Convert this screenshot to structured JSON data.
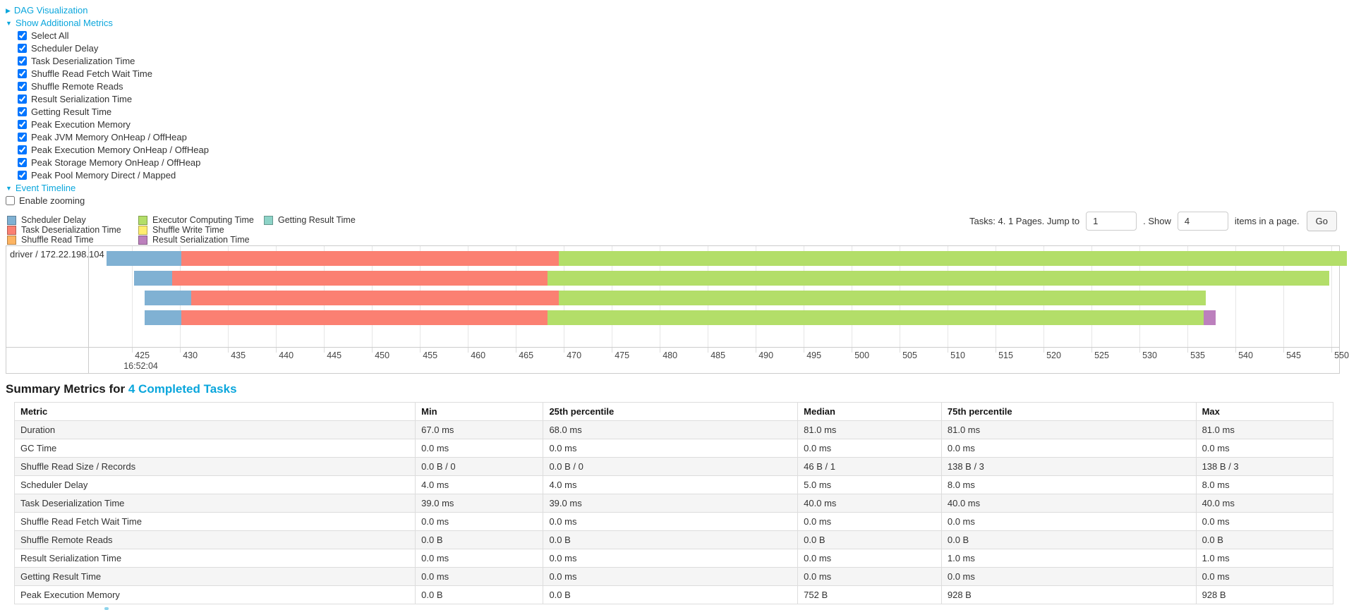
{
  "controls": {
    "dag": {
      "label": "DAG Visualization",
      "expanded": false
    },
    "metrics": {
      "label": "Show Additional Metrics",
      "expanded": true,
      "items": [
        {
          "label": "Select All",
          "checked": true
        },
        {
          "label": "Scheduler Delay",
          "checked": true
        },
        {
          "label": "Task Deserialization Time",
          "checked": true
        },
        {
          "label": "Shuffle Read Fetch Wait Time",
          "checked": true
        },
        {
          "label": "Shuffle Remote Reads",
          "checked": true
        },
        {
          "label": "Result Serialization Time",
          "checked": true
        },
        {
          "label": "Getting Result Time",
          "checked": true
        },
        {
          "label": "Peak Execution Memory",
          "checked": true
        },
        {
          "label": "Peak JVM Memory OnHeap / OffHeap",
          "checked": true
        },
        {
          "label": "Peak Execution Memory OnHeap / OffHeap",
          "checked": true
        },
        {
          "label": "Peak Storage Memory OnHeap / OffHeap",
          "checked": true
        },
        {
          "label": "Peak Pool Memory Direct / Mapped",
          "checked": true
        }
      ]
    },
    "timeline": {
      "label": "Event Timeline",
      "expanded": true
    },
    "enable_zooming": {
      "label": "Enable zooming",
      "checked": false
    }
  },
  "legend": {
    "items": [
      {
        "key": "scheduler-delay",
        "label": "Scheduler Delay",
        "color": "#80B1D3"
      },
      {
        "key": "task-deserialization-time",
        "label": "Task Deserialization Time",
        "color": "#FB8072"
      },
      {
        "key": "shuffle-read-time",
        "label": "Shuffle Read Time",
        "color": "#FDB462"
      },
      {
        "key": "executor-computing-time",
        "label": "Executor Computing Time",
        "color": "#B3DE69"
      },
      {
        "key": "shuffle-write-time",
        "label": "Shuffle Write Time",
        "color": "#FFED6F"
      },
      {
        "key": "result-serialization-time",
        "label": "Result Serialization Time",
        "color": "#BC80BD"
      },
      {
        "key": "getting-result-time",
        "label": "Getting Result Time",
        "color": "#8DD3C7"
      }
    ],
    "columns": [
      [
        0,
        1,
        2
      ],
      [
        3,
        4,
        5
      ],
      [
        6
      ]
    ]
  },
  "pagination": {
    "summary": "Tasks: 4. 1 Pages. Jump to",
    "jump_value": "1",
    "mid": ". Show",
    "show_value": "4",
    "suffix": "items in a page.",
    "go": "Go"
  },
  "chart_data": {
    "type": "timeline-bar",
    "title": "Event Timeline",
    "row_label": "driver / 172.22.198.104",
    "x_axis": {
      "domain": [
        420.5,
        550.8
      ],
      "tick_start": 425,
      "tick_end": 550,
      "tick_interval": 5,
      "tick_time_label": "16:52:04"
    },
    "tasks": [
      {
        "segments": [
          [
            "scheduler-delay",
            422.3,
            430.1
          ],
          [
            "task-deserialization-time",
            430.1,
            469.5
          ],
          [
            "executor-computing-time",
            469.5,
            551.6
          ]
        ]
      },
      {
        "segments": [
          [
            "scheduler-delay",
            425.2,
            429.2
          ],
          [
            "task-deserialization-time",
            429.2,
            468.3
          ],
          [
            "executor-computing-time",
            468.3,
            549.8
          ]
        ]
      },
      {
        "segments": [
          [
            "scheduler-delay",
            426.3,
            431.2
          ],
          [
            "task-deserialization-time",
            431.2,
            469.5
          ],
          [
            "executor-computing-time",
            469.5,
            536.9
          ]
        ]
      },
      {
        "segments": [
          [
            "scheduler-delay",
            426.3,
            430.1
          ],
          [
            "task-deserialization-time",
            430.1,
            468.3
          ],
          [
            "executor-computing-time",
            468.3,
            536.7
          ],
          [
            "result-serialization-time",
            536.7,
            537.9
          ]
        ]
      }
    ]
  },
  "summary": {
    "title_prefix": "Summary Metrics for",
    "title_link": "4 Completed Tasks",
    "table": {
      "headers": [
        "Metric",
        "Min",
        "25th percentile",
        "Median",
        "75th percentile",
        "Max"
      ],
      "rows": [
        [
          "Duration",
          "67.0 ms",
          "68.0 ms",
          "81.0 ms",
          "81.0 ms",
          "81.0 ms"
        ],
        [
          "GC Time",
          "0.0 ms",
          "0.0 ms",
          "0.0 ms",
          "0.0 ms",
          "0.0 ms"
        ],
        [
          "Shuffle Read Size / Records",
          "0.0 B / 0",
          "0.0 B / 0",
          "46 B / 1",
          "138 B / 3",
          "138 B / 3"
        ],
        [
          "Scheduler Delay",
          "4.0 ms",
          "4.0 ms",
          "5.0 ms",
          "8.0 ms",
          "8.0 ms"
        ],
        [
          "Task Deserialization Time",
          "39.0 ms",
          "39.0 ms",
          "40.0 ms",
          "40.0 ms",
          "40.0 ms"
        ],
        [
          "Shuffle Read Fetch Wait Time",
          "0.0 ms",
          "0.0 ms",
          "0.0 ms",
          "0.0 ms",
          "0.0 ms"
        ],
        [
          "Shuffle Remote Reads",
          "0.0 B",
          "0.0 B",
          "0.0 B",
          "0.0 B",
          "0.0 B"
        ],
        [
          "Result Serialization Time",
          "0.0 ms",
          "0.0 ms",
          "0.0 ms",
          "1.0 ms",
          "1.0 ms"
        ],
        [
          "Getting Result Time",
          "0.0 ms",
          "0.0 ms",
          "0.0 ms",
          "0.0 ms",
          "0.0 ms"
        ],
        [
          "Peak Execution Memory",
          "0.0 B",
          "0.0 B",
          "752 B",
          "928 B",
          "928 B"
        ]
      ]
    }
  }
}
